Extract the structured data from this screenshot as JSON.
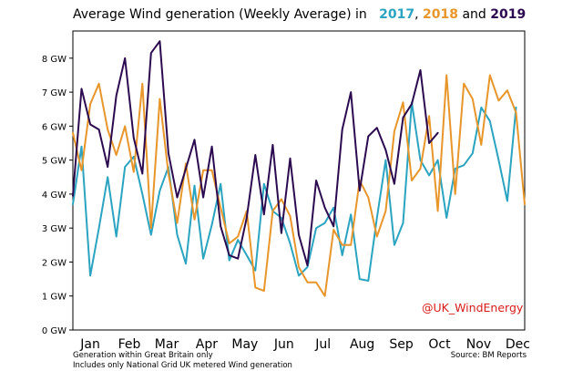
{
  "title": {
    "prefix": "Average Wind generation (Weekly Average) in",
    "y2017": "2017",
    "sep1": ",",
    "y2018": "2018",
    "and": "and",
    "y2019": "2019"
  },
  "watermark": "@UK_WindEnergy",
  "footnote": {
    "line1": "Generation within Great Britain only",
    "line2": "Includes only National Grid UK metered Wind generation",
    "source": "Source: BM Reports"
  },
  "colors": {
    "y2017": "#2aa4c0",
    "y2018": "#e8962a",
    "y2019": "#2b0a4f",
    "watermark": "#d91a1a"
  },
  "chart_data": {
    "type": "line",
    "title": "Average Wind generation (Weekly Average) in 2017, 2018 and 2019",
    "x_label": "",
    "y_label": "",
    "x_axis": {
      "unit": "week of year",
      "range": [
        1,
        53
      ]
    },
    "ylim": [
      0,
      8.8
    ],
    "yticks": [
      {
        "value": 0,
        "label": "0 GW"
      },
      {
        "value": 1,
        "label": "1 GW"
      },
      {
        "value": 2,
        "label": "2 GW"
      },
      {
        "value": 3,
        "label": "3 GW"
      },
      {
        "value": 4,
        "label": "4 GW"
      },
      {
        "value": 5,
        "label": "5 GW"
      },
      {
        "value": 6,
        "label": "6 GW"
      },
      {
        "value": 7,
        "label": "7 GW"
      },
      {
        "value": 8,
        "label": "8 GW"
      }
    ],
    "xticks": [
      {
        "week": 3.0,
        "label": "Jan"
      },
      {
        "week": 7.5,
        "label": "Feb"
      },
      {
        "week": 11.8,
        "label": "Mar"
      },
      {
        "week": 16.4,
        "label": "Apr"
      },
      {
        "week": 20.8,
        "label": "May"
      },
      {
        "week": 25.3,
        "label": "Jun"
      },
      {
        "week": 29.8,
        "label": "Jul"
      },
      {
        "week": 34.3,
        "label": "Aug"
      },
      {
        "week": 38.8,
        "label": "Sep"
      },
      {
        "week": 43.2,
        "label": "Oct"
      },
      {
        "week": 47.7,
        "label": "Nov"
      },
      {
        "week": 52.2,
        "label": "Dec"
      }
    ],
    "grid": false,
    "legend": "none (years colour-coded in title)",
    "series": [
      {
        "name": "2017",
        "values": [
          3.7,
          5.4,
          1.6,
          3.0,
          4.5,
          2.75,
          4.8,
          5.1,
          4.0,
          2.8,
          4.1,
          4.8,
          2.8,
          1.95,
          4.25,
          2.1,
          3.1,
          4.3,
          2.05,
          2.65,
          2.2,
          1.75,
          4.3,
          3.5,
          3.3,
          2.55,
          1.6,
          1.85,
          3.0,
          3.15,
          3.6,
          2.2,
          3.4,
          1.5,
          1.45,
          3.3,
          5.0,
          2.5,
          3.15,
          6.7,
          5.0,
          4.55,
          5.0,
          3.3,
          4.75,
          4.85,
          5.2,
          6.55,
          6.15,
          5.0,
          3.8,
          6.55
        ]
      },
      {
        "name": "2018",
        "values": [
          5.8,
          4.7,
          6.65,
          7.25,
          5.9,
          5.15,
          6.0,
          4.65,
          7.25,
          3.0,
          6.8,
          4.6,
          3.15,
          4.9,
          3.25,
          4.7,
          4.7,
          3.6,
          2.55,
          2.75,
          3.5,
          1.25,
          1.15,
          3.5,
          3.85,
          3.35,
          1.85,
          1.4,
          1.4,
          1.0,
          2.95,
          2.5,
          2.5,
          4.4,
          3.9,
          2.75,
          3.5,
          5.85,
          6.7,
          4.4,
          4.75,
          6.3,
          3.5,
          7.5,
          4.0,
          7.25,
          6.8,
          5.45,
          7.5,
          6.75,
          7.05,
          6.4,
          3.7
        ]
      },
      {
        "name": "2019",
        "values": [
          3.95,
          7.1,
          6.05,
          5.9,
          4.8,
          6.9,
          8.0,
          5.65,
          4.6,
          8.15,
          8.5,
          5.2,
          3.9,
          4.75,
          5.6,
          3.9,
          5.4,
          3.05,
          2.2,
          2.1,
          3.3,
          5.15,
          3.4,
          5.45,
          2.85,
          5.05,
          2.8,
          1.9,
          4.4,
          3.6,
          3.05,
          5.9,
          7.0,
          4.1,
          5.7,
          5.95,
          5.3,
          4.3,
          6.25,
          6.65,
          7.65,
          5.5,
          5.8
        ]
      }
    ]
  }
}
